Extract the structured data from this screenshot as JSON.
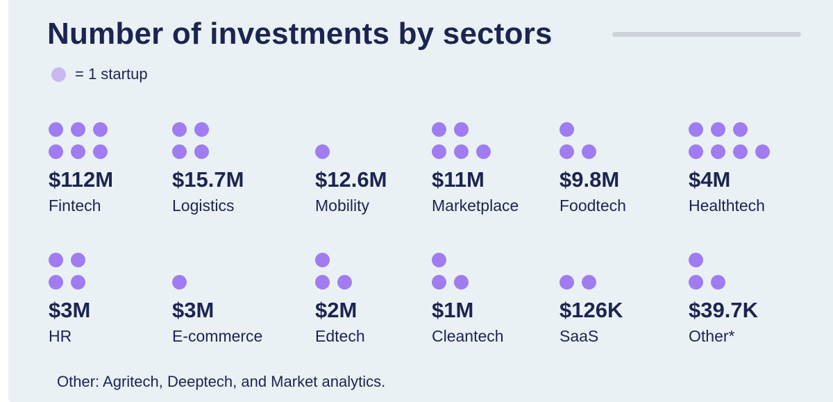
{
  "title": "Number of investments by sectors",
  "legend": {
    "text": "= 1 startup",
    "dot_color": "#c9b8f2"
  },
  "colors": {
    "dot": "#a07cf0",
    "text": "#1c2450",
    "background": "#e9f1f5"
  },
  "footnote": "Other: Agritech, Deeptech, and Market analytics.",
  "chart_data": {
    "type": "pictograph",
    "title": "Number of investments by sectors",
    "unit_label": "= 1 startup",
    "sectors": [
      {
        "name": "Fintech",
        "amount": "$112M",
        "startups": 6,
        "dot_rows": [
          3,
          3
        ]
      },
      {
        "name": "Logistics",
        "amount": "$15.7M",
        "startups": 4,
        "dot_rows": [
          2,
          2
        ]
      },
      {
        "name": "Mobility",
        "amount": "$12.6M",
        "startups": 1,
        "dot_rows": [
          1
        ]
      },
      {
        "name": "Marketplace",
        "amount": "$11M",
        "startups": 5,
        "dot_rows": [
          2,
          3
        ]
      },
      {
        "name": "Foodtech",
        "amount": "$9.8M",
        "startups": 3,
        "dot_rows": [
          1,
          2
        ]
      },
      {
        "name": "Healthtech",
        "amount": "$4M",
        "startups": 7,
        "dot_rows": [
          3,
          4
        ]
      },
      {
        "name": "HR",
        "amount": "$3M",
        "startups": 4,
        "dot_rows": [
          2,
          2
        ]
      },
      {
        "name": "E-commerce",
        "amount": "$3M",
        "startups": 1,
        "dot_rows": [
          1
        ]
      },
      {
        "name": "Edtech",
        "amount": "$2M",
        "startups": 3,
        "dot_rows": [
          1,
          2
        ]
      },
      {
        "name": "Cleantech",
        "amount": "$1M",
        "startups": 3,
        "dot_rows": [
          1,
          2
        ]
      },
      {
        "name": "SaaS",
        "amount": "$126K",
        "startups": 2,
        "dot_rows": [
          2
        ]
      },
      {
        "name": "Other*",
        "amount": "$39.7K",
        "startups": 3,
        "dot_rows": [
          1,
          2
        ]
      }
    ]
  }
}
